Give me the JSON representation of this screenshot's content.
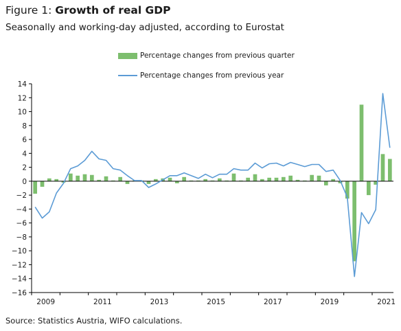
{
  "figure": {
    "title_prefix": "Figure 1: ",
    "title_bold": "Growth of real GDP",
    "subtitle": "Seasonally and working-day adjusted, according to Eurostat",
    "source": "Source: Statistics Austria, WIFO calculations."
  },
  "colors": {
    "bars": "#7dbe6e",
    "line": "#5b9bd5",
    "axis": "#000000"
  },
  "chart_data": {
    "type": "bar",
    "title": "Growth of real GDP",
    "subtitle": "Seasonally and working-day adjusted, according to Eurostat",
    "xlabel": "",
    "ylabel": "",
    "ylim": [
      -16,
      14
    ],
    "yticks": [
      -16,
      -14,
      -12,
      -10,
      -8,
      -6,
      -4,
      -2,
      0,
      2,
      4,
      6,
      8,
      10,
      12,
      14
    ],
    "xtick_labels": [
      "2009",
      "2011",
      "2013",
      "2015",
      "2017",
      "2019",
      "2021"
    ],
    "legend_position": "top",
    "grid": false,
    "categories": [
      "2009Q1",
      "2009Q2",
      "2009Q3",
      "2009Q4",
      "2010Q1",
      "2010Q2",
      "2010Q3",
      "2010Q4",
      "2011Q1",
      "2011Q2",
      "2011Q3",
      "2011Q4",
      "2012Q1",
      "2012Q2",
      "2012Q3",
      "2012Q4",
      "2013Q1",
      "2013Q2",
      "2013Q3",
      "2013Q4",
      "2014Q1",
      "2014Q2",
      "2014Q3",
      "2014Q4",
      "2015Q1",
      "2015Q2",
      "2015Q3",
      "2015Q4",
      "2016Q1",
      "2016Q2",
      "2016Q3",
      "2016Q4",
      "2017Q1",
      "2017Q2",
      "2017Q3",
      "2017Q4",
      "2018Q1",
      "2018Q2",
      "2018Q3",
      "2018Q4",
      "2019Q1",
      "2019Q2",
      "2019Q3",
      "2019Q4",
      "2020Q1",
      "2020Q2",
      "2020Q3",
      "2020Q4",
      "2021Q1",
      "2021Q2",
      "2021Q3"
    ],
    "series": [
      {
        "name": "Percentage changes from previous quarter",
        "type": "bar",
        "values": [
          -1.8,
          -0.8,
          0.4,
          0.3,
          -0.2,
          1.1,
          0.8,
          1.0,
          0.9,
          0.2,
          0.7,
          0.1,
          0.6,
          -0.4,
          0.1,
          0.1,
          -0.4,
          0.3,
          0.4,
          0.5,
          -0.3,
          0.6,
          0.1,
          0.1,
          0.3,
          0.1,
          0.4,
          0.1,
          1.1,
          0.1,
          0.5,
          1.0,
          0.3,
          0.5,
          0.5,
          0.6,
          0.8,
          0.2,
          0.1,
          0.9,
          0.8,
          -0.6,
          0.3,
          -0.3,
          -2.5,
          -11.5,
          11.0,
          -2.0,
          -0.5,
          3.9,
          3.2
        ]
      },
      {
        "name": "Percentage changes from previous year",
        "type": "line",
        "values": [
          -3.7,
          -5.3,
          -4.4,
          -1.7,
          -0.3,
          1.8,
          2.2,
          3.0,
          4.3,
          3.2,
          3.0,
          1.8,
          1.6,
          0.8,
          0.1,
          0.1,
          -0.9,
          -0.4,
          0.2,
          0.8,
          0.8,
          1.2,
          0.8,
          0.4,
          1.0,
          0.5,
          1.0,
          1.0,
          1.8,
          1.6,
          1.6,
          2.6,
          1.9,
          2.5,
          2.6,
          2.2,
          2.7,
          2.4,
          2.1,
          2.4,
          2.4,
          1.4,
          1.6,
          0.1,
          -2.3,
          -13.7,
          -4.5,
          -6.1,
          -4.1,
          12.6,
          4.8
        ]
      }
    ]
  }
}
